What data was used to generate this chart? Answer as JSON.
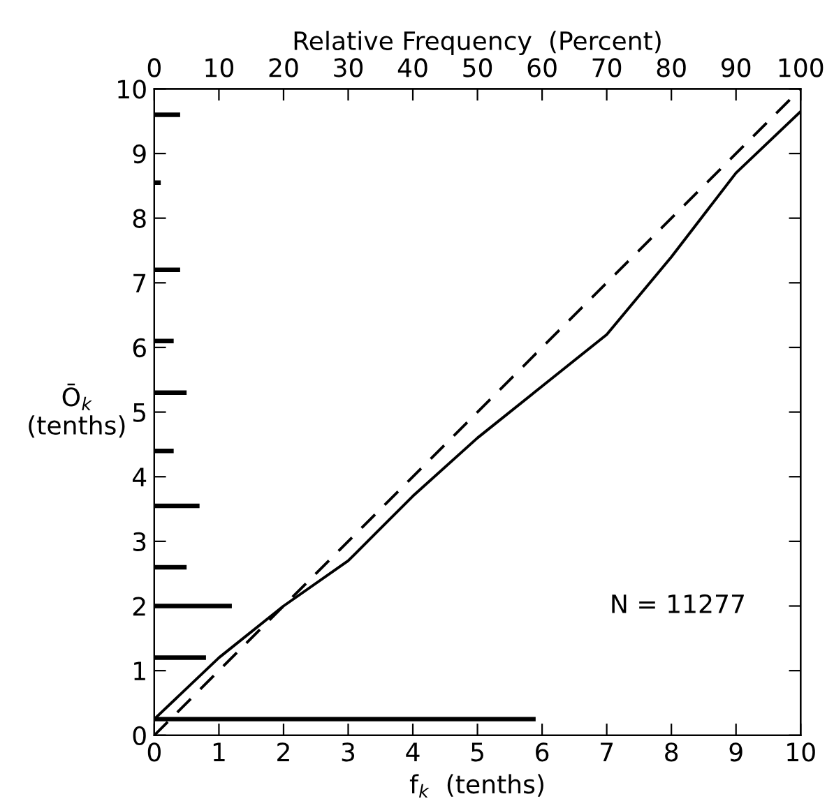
{
  "chart_data": [
    {
      "type": "line",
      "xlabel": "f$_{k}$  (tenths)",
      "ylabel": "Ō$_{k}$\n(tenths)",
      "xlim": [
        0,
        10
      ],
      "xticks": [
        0,
        1,
        2,
        3,
        4,
        5,
        6,
        7,
        8,
        9,
        10
      ],
      "ylim": [
        0,
        10
      ],
      "yticks": [
        0,
        1,
        2,
        3,
        4,
        5,
        6,
        7,
        8,
        9,
        10
      ],
      "grid": false,
      "marker": "none",
      "annotations": [
        "N = 11277"
      ],
      "series": [
        {
          "color": "#000000",
          "line_style": "solid",
          "x": [
            0,
            1,
            2,
            3,
            4,
            5,
            6,
            7,
            8,
            9,
            10
          ],
          "values": [
            0.25,
            1.2,
            2.0,
            2.7,
            3.7,
            4.6,
            5.4,
            6.2,
            7.4,
            8.7,
            9.65
          ]
        },
        {
          "color": "#000000",
          "line_style": "dashed",
          "x": [
            0,
            10
          ],
          "values": [
            0,
            10
          ]
        }
      ]
    },
    {
      "type": "bar",
      "orientation": "horizontal",
      "xlabel": "Relative Frequency  (Percent)",
      "xlim": [
        0,
        100
      ],
      "xticks": [
        0,
        10,
        20,
        30,
        40,
        50,
        60,
        70,
        80,
        90,
        100
      ],
      "ylim": [
        0,
        10
      ],
      "tick_labels": "x",
      "series": [
        {
          "color": "#000000",
          "x": [
            0.25,
            1.2,
            2.0,
            2.6,
            3.55,
            4.4,
            5.3,
            6.1,
            7.2,
            8.55,
            9.6
          ],
          "values": [
            59,
            8,
            12,
            5,
            7,
            3,
            5,
            3,
            4,
            1,
            4
          ]
        }
      ]
    }
  ]
}
